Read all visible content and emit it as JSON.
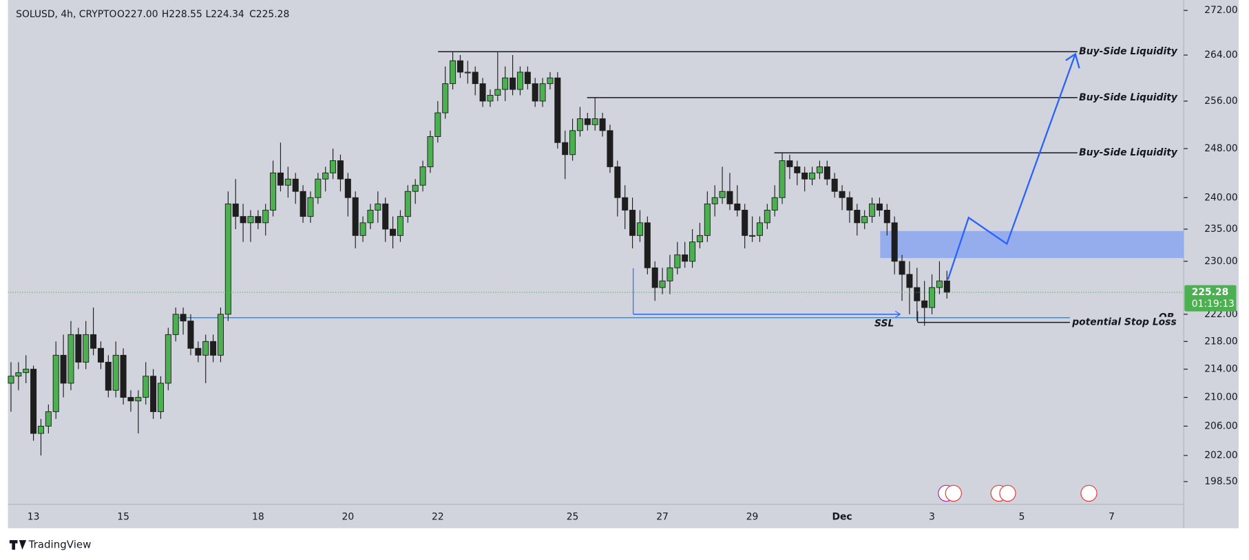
{
  "chart_data": {
    "type": "candlestick",
    "header": {
      "symbol": "SOLUSD, 4h, CRYPTO",
      "open": "O227.00",
      "high": "H228.55",
      "low": "L224.34",
      "close": "C225.28"
    },
    "log_scale": true,
    "ylim": [
      195.5,
      273.9
    ],
    "yticks": [
      {
        "value": 272,
        "label": "272.00"
      },
      {
        "value": 264,
        "label": "264.00"
      },
      {
        "value": 256,
        "label": "256.00"
      },
      {
        "value": 248,
        "label": "248.00"
      },
      {
        "value": 240,
        "label": "240.00"
      },
      {
        "value": 235,
        "label": "235.00"
      },
      {
        "value": 230,
        "label": "230.00"
      },
      {
        "value": 222,
        "label": "222.00"
      },
      {
        "value": 218,
        "label": "218.00"
      },
      {
        "value": 214,
        "label": "214.00"
      },
      {
        "value": 210,
        "label": "210.00"
      },
      {
        "value": 206,
        "label": "206.00"
      },
      {
        "value": 202,
        "label": "202.00"
      },
      {
        "value": 198.5,
        "label": "198.50"
      }
    ],
    "x_labels": [
      "13",
      "15",
      "18",
      "20",
      "22",
      "25",
      "27",
      "29",
      "Dec",
      "3",
      "5",
      "7"
    ],
    "up_color": "#4caf50",
    "down_color": "#1e1e1e",
    "candles": {
      "open": [
        212,
        213,
        213.5,
        214,
        205,
        206,
        208,
        216,
        212,
        219,
        215,
        219,
        217,
        215,
        211,
        216,
        210,
        209.5,
        210,
        213,
        208,
        212,
        219,
        222,
        221,
        217,
        216,
        218,
        216,
        222,
        239,
        237,
        236,
        237,
        236,
        238,
        244,
        242,
        243,
        241,
        237,
        240,
        243,
        244,
        246,
        243,
        240,
        234,
        236,
        238,
        239,
        235,
        234,
        237,
        241,
        242,
        245,
        250,
        254,
        259,
        263,
        261,
        261,
        259,
        256,
        257,
        258,
        260,
        258,
        261,
        259,
        256,
        259,
        260,
        249,
        247,
        251,
        253,
        252,
        253,
        251,
        245,
        240,
        238,
        234,
        236,
        229,
        226,
        227,
        229,
        231,
        230,
        233,
        234,
        239,
        240,
        241,
        239,
        238,
        234,
        234,
        236,
        238,
        240,
        246,
        245,
        244,
        243,
        244,
        245,
        243,
        241,
        240,
        238,
        236,
        237,
        239,
        238,
        236,
        230,
        228,
        226,
        224,
        223,
        226,
        227
      ],
      "high": [
        215,
        215,
        216,
        214.5,
        207,
        209,
        218,
        219,
        221,
        220,
        221,
        223,
        218,
        216,
        218,
        217,
        211,
        211,
        215,
        214,
        213,
        220,
        223,
        223,
        222,
        218,
        219,
        219,
        223,
        241,
        243,
        239,
        238,
        238,
        239,
        246,
        249,
        245,
        244,
        242,
        241,
        244,
        245,
        248,
        247,
        244,
        241,
        237,
        239,
        241,
        240,
        237,
        238,
        242,
        243,
        246,
        251,
        256,
        262,
        264.6,
        264,
        263,
        262,
        260,
        258,
        264.5,
        262,
        264,
        262,
        262,
        260,
        260,
        261,
        261,
        251,
        253,
        255,
        254,
        256.6,
        254,
        252,
        246,
        242,
        240,
        238,
        237,
        230,
        229,
        231,
        233,
        233,
        235,
        236,
        241,
        242,
        245,
        244,
        242,
        239,
        237,
        237,
        239,
        242,
        247.3,
        247,
        246,
        245,
        245,
        246,
        246,
        244,
        242,
        241,
        239,
        238,
        240,
        240,
        239,
        237,
        231,
        230,
        229,
        227,
        228,
        230,
        228.55
      ],
      "low": [
        208,
        211,
        212,
        204,
        202,
        205,
        207,
        210,
        211,
        214,
        214,
        216,
        214,
        210,
        210,
        209,
        208,
        205,
        209,
        207,
        207,
        211,
        218,
        219,
        216,
        215,
        212,
        215,
        215,
        221,
        235,
        233,
        233,
        235,
        234,
        237,
        241,
        240,
        239,
        236,
        236,
        239,
        241,
        243,
        241,
        237,
        232,
        233,
        235,
        236,
        233,
        232,
        233,
        236,
        239,
        241,
        244,
        249,
        253,
        258,
        260,
        259,
        257,
        255,
        255,
        256,
        256,
        257,
        257,
        258,
        255,
        255,
        258,
        248,
        243,
        246,
        250,
        251,
        251,
        250,
        244,
        237,
        235,
        232,
        233,
        228,
        224,
        225,
        225,
        228,
        229,
        229,
        232,
        233,
        237,
        239,
        238,
        237,
        232,
        233,
        233,
        235,
        237,
        239,
        243,
        242,
        241,
        242,
        243,
        242,
        240,
        238,
        236,
        234,
        235,
        236,
        237,
        234,
        228,
        224,
        222,
        221,
        220.3,
        222,
        225,
        224.34
      ],
      "close": [
        213,
        213.5,
        214,
        205,
        206,
        208,
        216,
        212,
        219,
        215,
        219,
        217,
        215,
        211,
        216,
        210,
        209.5,
        210,
        213,
        208,
        212,
        219,
        222,
        221,
        217,
        216,
        218,
        216,
        222,
        239,
        237,
        236,
        237,
        236,
        238,
        244,
        242,
        243,
        241,
        237,
        240,
        243,
        244,
        246,
        243,
        240,
        234,
        236,
        238,
        239,
        235,
        234,
        237,
        241,
        242,
        245,
        250,
        254,
        259,
        263,
        261,
        261,
        259,
        256,
        257,
        258,
        260,
        258,
        261,
        259,
        256,
        259,
        260,
        249,
        247,
        251,
        253,
        252,
        253,
        251,
        245,
        240,
        238,
        234,
        236,
        229,
        226,
        227,
        229,
        231,
        230,
        233,
        234,
        239,
        240,
        241,
        239,
        238,
        234,
        234,
        236,
        238,
        240,
        246,
        245,
        244,
        243,
        244,
        245,
        243,
        241,
        240,
        238,
        236,
        237,
        239,
        238,
        236,
        230,
        228,
        226,
        224,
        223,
        226,
        227,
        225.28
      ]
    },
    "last_price": 225.28,
    "countdown": "01:19:13",
    "zone": [
      230.5,
      234.7
    ],
    "zone_color": "#8fa8ee",
    "levels": [
      {
        "label": "Buy-Side Liquidity",
        "value": 264.6,
        "color": "#131722"
      },
      {
        "label": "Buy-Side Liquidity",
        "value": 256.6,
        "color": "#131722"
      },
      {
        "label": "Buy-Side Liquidity",
        "value": 247.3,
        "color": "#131722"
      },
      {
        "label": "SSL",
        "value": 222,
        "color": "#2962ff"
      },
      {
        "label": "OB",
        "value": 221.5,
        "color": "#2196f3"
      },
      {
        "label": "potential Stop Loss",
        "value": 220.8,
        "color": "#131722"
      }
    ],
    "watermark": "TradingView"
  }
}
